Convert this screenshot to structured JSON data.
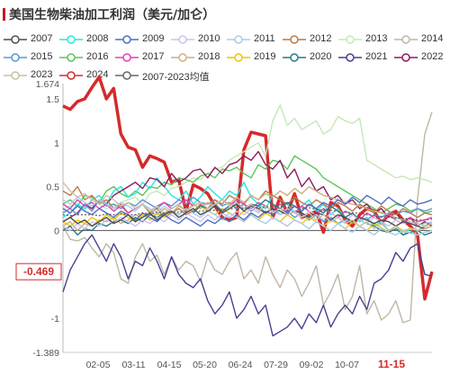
{
  "title": "美国生物柴油加工利润（美元/加仑）",
  "legend": [
    {
      "name": "2007",
      "color": "#4d4d4d"
    },
    {
      "name": "2008",
      "color": "#27e8e0"
    },
    {
      "name": "2009",
      "color": "#4f6fc4"
    },
    {
      "name": "2010",
      "color": "#c9c2f0"
    },
    {
      "name": "2011",
      "color": "#aacbe6"
    },
    {
      "name": "2012",
      "color": "#b87a4b"
    },
    {
      "name": "2013",
      "color": "#c6e8b6"
    },
    {
      "name": "2014",
      "color": "#c0b6a6"
    },
    {
      "name": "2015",
      "color": "#5b95d6"
    },
    {
      "name": "2016",
      "color": "#5cc45a"
    },
    {
      "name": "2017",
      "color": "#e23fb6"
    },
    {
      "name": "2018",
      "color": "#c9b07f"
    },
    {
      "name": "2019",
      "color": "#f2c400"
    },
    {
      "name": "2020",
      "color": "#2a7a87"
    },
    {
      "name": "2021",
      "color": "#4a3f91"
    },
    {
      "name": "2022",
      "color": "#8c1a5e"
    },
    {
      "name": "2023",
      "color": "#cbbfa6"
    },
    {
      "name": "2024",
      "color": "#d62a2a"
    },
    {
      "name": "2007-2023均值",
      "color": "#666666"
    }
  ],
  "chart_data": {
    "type": "line",
    "y_ticks": [
      "1.674",
      "1.5",
      "1",
      "0.5",
      "0",
      "-0.5",
      "-1",
      "-1.389"
    ],
    "ylim": [
      -1.389,
      1.674
    ],
    "x_ticks": [
      "02-05",
      "03-11",
      "04-15",
      "05-20",
      "06-24",
      "07-29",
      "09-02",
      "10-07",
      "11-15"
    ],
    "last_value_label": "-0.469",
    "series": [
      {
        "name": "2024",
        "color": "#d62a2a",
        "values": [
          1.42,
          1.38,
          1.47,
          1.5,
          1.63,
          1.75,
          1.5,
          1.62,
          1.1,
          0.95,
          0.92,
          0.72,
          0.85,
          0.82,
          0.78,
          0.55,
          0.58,
          0.22,
          0.52,
          0.48,
          0.42,
          0.28,
          0.15,
          0.12,
          0.15,
          0.92,
          1.12,
          1.1,
          1.08,
          0.15,
          0.38,
          0.2,
          0.42,
          0.15,
          0.18,
          0.22,
          -0.02,
          0.32,
          0.28,
          0.12,
          0.05,
          0.18,
          0.25,
          0.22,
          0.08,
          0.18,
          0.22,
          0.12,
          0.05,
          -0.05,
          -0.78,
          -0.469
        ]
      },
      {
        "name": "2014",
        "color": "#c0b6a6",
        "values": [
          0.05,
          -0.1,
          -0.12,
          -0.08,
          -0.2,
          -0.3,
          -0.15,
          -0.25,
          -0.55,
          -0.6,
          -0.3,
          -0.15,
          -0.35,
          -0.28,
          -0.5,
          -0.3,
          -0.45,
          -0.35,
          -0.4,
          -0.58,
          -0.3,
          -0.45,
          -0.5,
          -0.35,
          -0.25,
          -0.55,
          -0.45,
          -0.6,
          -0.3,
          -0.5,
          -0.65,
          -0.45,
          -0.55,
          -0.75,
          -0.6,
          -0.4,
          -0.85,
          -0.7,
          -0.5,
          -0.9,
          -0.75,
          -0.4,
          -0.95,
          -0.8,
          -1.02,
          -0.95,
          -0.8,
          -1.05,
          -1.02,
          0.35,
          1.1,
          1.35
        ]
      },
      {
        "name": "2021",
        "color": "#4a3f91",
        "values": [
          -0.7,
          -0.45,
          -0.3,
          -0.15,
          -0.05,
          -0.2,
          -0.35,
          -0.15,
          -0.3,
          -0.55,
          -0.35,
          -0.4,
          -0.2,
          -0.35,
          -0.55,
          -0.3,
          -0.5,
          -0.6,
          -0.65,
          -0.55,
          -0.8,
          -0.95,
          -0.85,
          -0.7,
          -1.0,
          -0.9,
          -0.75,
          -0.95,
          -0.85,
          -1.2,
          -1.15,
          -1.1,
          -1.0,
          -1.12,
          -0.95,
          -1.05,
          -0.85,
          -1.1,
          -0.95,
          -0.85,
          -0.95,
          -0.75,
          -0.9,
          -0.6,
          -0.55,
          -0.45,
          -0.25,
          -0.35,
          -0.2,
          -0.15,
          -0.5,
          -0.52
        ]
      },
      {
        "name": "2013",
        "color": "#c6e8b6",
        "values": [
          0.25,
          0.28,
          0.3,
          0.22,
          0.35,
          0.3,
          0.25,
          0.28,
          0.32,
          0.35,
          0.38,
          0.3,
          0.42,
          0.45,
          0.4,
          0.48,
          0.5,
          0.55,
          0.6,
          0.58,
          0.65,
          0.7,
          0.72,
          0.8,
          0.85,
          0.9,
          0.95,
          1.0,
          0.85,
          1.25,
          1.43,
          1.2,
          1.28,
          1.15,
          1.2,
          1.25,
          1.1,
          1.15,
          1.3,
          1.25,
          1.22,
          1.28,
          0.8,
          0.75,
          0.7,
          0.65,
          0.6,
          0.62,
          0.58,
          0.6,
          0.58,
          0.55
        ]
      },
      {
        "name": "2016",
        "color": "#5cc45a",
        "values": [
          0.3,
          0.35,
          0.28,
          0.4,
          0.38,
          0.32,
          0.45,
          0.5,
          0.42,
          0.38,
          0.45,
          0.4,
          0.5,
          0.48,
          0.55,
          0.52,
          0.6,
          0.58,
          0.55,
          0.62,
          0.65,
          0.6,
          0.7,
          0.68,
          0.72,
          0.65,
          0.6,
          0.75,
          0.7,
          0.8,
          0.78,
          0.7,
          0.85,
          0.8,
          0.75,
          0.7,
          0.6,
          0.55,
          0.5,
          0.45,
          0.4,
          0.35,
          0.3,
          0.25,
          0.2,
          0.25,
          0.3,
          0.28,
          0.22,
          0.25,
          0.2,
          0.22
        ]
      },
      {
        "name": "2008",
        "color": "#27e8e0",
        "values": [
          0.15,
          0.2,
          0.3,
          0.25,
          0.35,
          0.4,
          0.3,
          0.45,
          0.5,
          0.38,
          0.42,
          0.55,
          0.48,
          0.6,
          0.5,
          0.4,
          0.35,
          0.45,
          0.3,
          0.38,
          0.5,
          0.42,
          0.35,
          0.45,
          0.4,
          0.55,
          0.38,
          0.3,
          0.25,
          0.4,
          0.35,
          0.3,
          0.2,
          0.28,
          0.35,
          0.22,
          0.3,
          0.18,
          0.25,
          0.15,
          0.2,
          0.1,
          0.15,
          0.05,
          0.1,
          0.0,
          0.05,
          -0.05,
          0.02,
          0.0,
          0.05,
          0.1
        ]
      },
      {
        "name": "2022",
        "color": "#8c1a5e",
        "values": [
          0.1,
          0.15,
          0.2,
          0.3,
          0.25,
          0.35,
          0.3,
          0.4,
          0.45,
          0.5,
          0.55,
          0.48,
          0.6,
          0.58,
          0.5,
          0.65,
          0.55,
          0.6,
          0.68,
          0.7,
          0.6,
          0.72,
          0.65,
          0.75,
          0.78,
          0.85,
          0.8,
          0.9,
          0.75,
          0.7,
          0.8,
          0.6,
          0.7,
          0.5,
          0.6,
          0.45,
          0.5,
          0.35,
          0.4,
          0.3,
          0.35,
          0.25,
          0.3,
          0.2,
          0.25,
          0.15,
          0.2,
          0.1,
          0.15,
          0.05,
          0.1,
          0.05
        ]
      },
      {
        "name": "2015",
        "color": "#5b95d6",
        "values": [
          0.2,
          0.25,
          0.18,
          0.3,
          0.22,
          0.35,
          0.28,
          0.3,
          0.25,
          0.32,
          0.28,
          0.35,
          0.3,
          0.25,
          0.32,
          0.28,
          0.35,
          0.3,
          0.38,
          0.32,
          0.3,
          0.35,
          0.28,
          0.32,
          0.25,
          0.3,
          0.22,
          0.28,
          0.2,
          0.25,
          0.18,
          0.22,
          0.15,
          0.2,
          0.12,
          0.18,
          0.1,
          0.15,
          0.08,
          0.12,
          0.1,
          0.15,
          0.12,
          0.18,
          0.15,
          0.2,
          0.18,
          0.22,
          0.2,
          0.25,
          0.22,
          0.25
        ]
      },
      {
        "name": "2012",
        "color": "#b87a4b",
        "values": [
          0.45,
          0.4,
          0.5,
          0.35,
          0.4,
          0.3,
          0.35,
          0.25,
          0.3,
          0.2,
          0.25,
          0.3,
          0.2,
          0.25,
          0.15,
          0.2,
          0.25,
          0.18,
          0.22,
          0.3,
          0.25,
          0.35,
          0.3,
          0.4,
          0.35,
          0.3,
          0.4,
          0.35,
          0.45,
          0.4,
          0.35,
          0.3,
          0.38,
          0.32,
          0.28,
          0.35,
          0.3,
          0.25,
          0.32,
          0.28,
          0.22,
          0.3,
          0.25,
          0.2,
          0.28,
          0.22,
          0.18,
          0.25,
          0.2,
          0.15,
          0.2,
          0.18
        ]
      },
      {
        "name": "2018",
        "color": "#c9b07f",
        "values": [
          0.05,
          0.1,
          0.0,
          0.08,
          0.05,
          0.12,
          0.1,
          0.15,
          0.08,
          0.12,
          0.18,
          0.15,
          0.2,
          0.18,
          0.25,
          0.2,
          0.28,
          0.22,
          0.3,
          0.25,
          0.32,
          0.28,
          0.35,
          0.3,
          0.38,
          0.32,
          0.4,
          0.35,
          0.42,
          0.38,
          0.45,
          0.4,
          0.48,
          0.42,
          0.5,
          0.45,
          0.4,
          0.38,
          0.35,
          0.32,
          0.3,
          0.28,
          0.25,
          0.22,
          0.2,
          0.18,
          0.15,
          0.12,
          0.1,
          0.08,
          0.05,
          0.08
        ]
      },
      {
        "name": "2019",
        "color": "#f2c400",
        "values": [
          0.1,
          0.05,
          0.12,
          0.08,
          0.15,
          0.1,
          0.18,
          0.12,
          0.2,
          0.15,
          0.1,
          0.18,
          0.12,
          0.2,
          0.15,
          0.22,
          0.18,
          0.25,
          0.2,
          0.28,
          0.22,
          0.18,
          0.25,
          0.2,
          0.15,
          0.22,
          0.18,
          0.12,
          0.2,
          0.15,
          0.1,
          0.18,
          0.12,
          0.08,
          0.15,
          0.1,
          0.05,
          0.12,
          0.08,
          0.02,
          0.1,
          0.05,
          0.0,
          0.08,
          0.03,
          -0.02,
          0.05,
          0.0,
          0.02,
          0.0,
          0.03,
          0.05
        ]
      },
      {
        "name": "2017",
        "color": "#e23fb6",
        "values": [
          0.3,
          0.25,
          0.35,
          0.28,
          0.32,
          0.25,
          0.3,
          0.22,
          0.28,
          0.2,
          0.25,
          0.3,
          0.22,
          0.28,
          0.32,
          0.25,
          0.3,
          0.35,
          0.28,
          0.32,
          0.25,
          0.3,
          0.22,
          0.28,
          0.35,
          0.3,
          0.25,
          0.32,
          0.28,
          0.22,
          0.3,
          0.25,
          0.2,
          0.28,
          0.22,
          0.18,
          0.25,
          0.2,
          0.15,
          0.22,
          0.18,
          0.12,
          0.2,
          0.15,
          0.1,
          0.18,
          0.12,
          0.08,
          0.15,
          0.1,
          0.12,
          0.15
        ]
      },
      {
        "name": "2020",
        "color": "#2a7a87",
        "values": [
          0.0,
          0.05,
          -0.05,
          0.02,
          0.0,
          0.08,
          0.05,
          0.1,
          0.12,
          0.08,
          0.15,
          0.1,
          0.18,
          0.15,
          0.2,
          0.22,
          0.18,
          0.25,
          0.2,
          0.28,
          0.25,
          0.3,
          0.22,
          0.28,
          0.32,
          0.25,
          0.3,
          0.28,
          0.35,
          0.3,
          0.25,
          0.32,
          0.28,
          0.22,
          0.3,
          0.25,
          0.2,
          0.28,
          0.22,
          0.15,
          0.2,
          0.12,
          0.08,
          0.05,
          0.0,
          -0.02,
          0.02,
          -0.05,
          -0.02,
          0.0,
          -0.05,
          -0.02
        ]
      },
      {
        "name": "2011",
        "color": "#aacbe6",
        "values": [
          0.35,
          0.3,
          0.38,
          0.32,
          0.28,
          0.35,
          0.3,
          0.25,
          0.32,
          0.28,
          0.22,
          0.3,
          0.25,
          0.2,
          0.28,
          0.22,
          0.18,
          0.25,
          0.2,
          0.15,
          0.22,
          0.18,
          0.12,
          0.2,
          0.15,
          0.1,
          0.18,
          0.12,
          0.08,
          0.15,
          0.1,
          0.05,
          0.12,
          0.08,
          0.02,
          0.1,
          0.05,
          0.0,
          0.08,
          0.02,
          -0.02,
          0.05,
          0.0,
          -0.05,
          0.02,
          -0.02,
          -0.05,
          0.0,
          -0.03,
          -0.05,
          -0.02,
          0.0
        ]
      },
      {
        "name": "2010",
        "color": "#c9c2f0",
        "values": [
          0.05,
          0.0,
          0.08,
          0.02,
          0.1,
          0.05,
          0.12,
          0.08,
          0.15,
          0.1,
          0.05,
          0.12,
          0.08,
          0.15,
          0.1,
          0.18,
          0.12,
          0.2,
          0.15,
          0.1,
          0.18,
          0.12,
          0.2,
          0.15,
          0.22,
          0.18,
          0.25,
          0.2,
          0.28,
          0.22,
          0.18,
          0.25,
          0.2,
          0.15,
          0.22,
          0.18,
          0.12,
          0.2,
          0.15,
          0.1,
          0.18,
          0.12,
          0.08,
          0.15,
          0.1,
          0.05,
          0.12,
          0.08,
          0.1,
          0.05,
          0.08,
          0.1
        ]
      },
      {
        "name": "2009",
        "color": "#4f6fc4",
        "values": [
          0.25,
          0.2,
          0.28,
          0.22,
          0.18,
          0.25,
          0.2,
          0.15,
          0.22,
          0.18,
          0.12,
          0.2,
          0.15,
          0.1,
          0.18,
          0.12,
          0.08,
          0.15,
          0.1,
          0.05,
          0.12,
          0.08,
          0.15,
          0.1,
          0.18,
          0.12,
          0.2,
          0.15,
          0.22,
          0.18,
          0.25,
          0.2,
          0.28,
          0.22,
          0.3,
          0.25,
          0.32,
          0.28,
          0.35,
          0.3,
          0.38,
          0.32,
          0.4,
          0.35,
          0.3,
          0.38,
          0.32,
          0.28,
          0.35,
          0.3,
          0.32,
          0.35
        ]
      },
      {
        "name": "2007",
        "color": "#4d4d4d",
        "values": [
          0.1,
          0.15,
          0.08,
          0.12,
          0.05,
          0.1,
          0.15,
          0.08,
          0.12,
          0.18,
          0.1,
          0.15,
          0.2,
          0.12,
          0.18,
          0.22,
          0.15,
          0.2,
          0.25,
          0.18,
          0.22,
          0.28,
          0.2,
          0.25,
          0.3,
          0.22,
          0.28,
          0.25,
          0.2,
          0.25,
          0.22,
          0.18,
          0.22,
          0.2,
          0.15,
          0.2,
          0.18,
          0.12,
          0.18,
          0.15,
          0.1,
          0.15,
          0.12,
          0.08,
          0.12,
          0.1,
          0.05,
          0.1,
          0.08,
          0.05,
          0.02,
          0.05
        ]
      },
      {
        "name": "2023",
        "color": "#cbbfa6",
        "values": [
          0.55,
          0.45,
          0.38,
          0.42,
          0.35,
          0.3,
          0.4,
          0.35,
          0.28,
          0.32,
          0.25,
          0.3,
          0.22,
          0.28,
          0.2,
          0.25,
          0.3,
          0.22,
          0.28,
          0.32,
          0.25,
          0.3,
          0.35,
          0.28,
          0.32,
          0.25,
          0.3,
          0.22,
          0.28,
          0.2,
          0.25,
          0.18,
          0.22,
          0.15,
          0.2,
          0.12,
          0.18,
          0.1,
          0.15,
          0.08,
          0.12,
          0.05,
          0.1,
          0.02,
          0.08,
          0.0,
          0.05,
          -0.02,
          0.03,
          0.0,
          0.02,
          0.05
        ]
      },
      {
        "name": "2007-2023均值",
        "color": "#666666",
        "dashed": true,
        "values": [
          0.18,
          0.17,
          0.18,
          0.18,
          0.18,
          0.17,
          0.19,
          0.18,
          0.19,
          0.18,
          0.18,
          0.2,
          0.19,
          0.21,
          0.2,
          0.21,
          0.21,
          0.22,
          0.22,
          0.22,
          0.23,
          0.23,
          0.24,
          0.24,
          0.26,
          0.25,
          0.27,
          0.26,
          0.27,
          0.27,
          0.28,
          0.26,
          0.27,
          0.25,
          0.26,
          0.24,
          0.23,
          0.23,
          0.22,
          0.21,
          0.2,
          0.2,
          0.18,
          0.17,
          0.16,
          0.15,
          0.14,
          0.14,
          0.13,
          0.12,
          0.12,
          0.13
        ]
      }
    ]
  }
}
